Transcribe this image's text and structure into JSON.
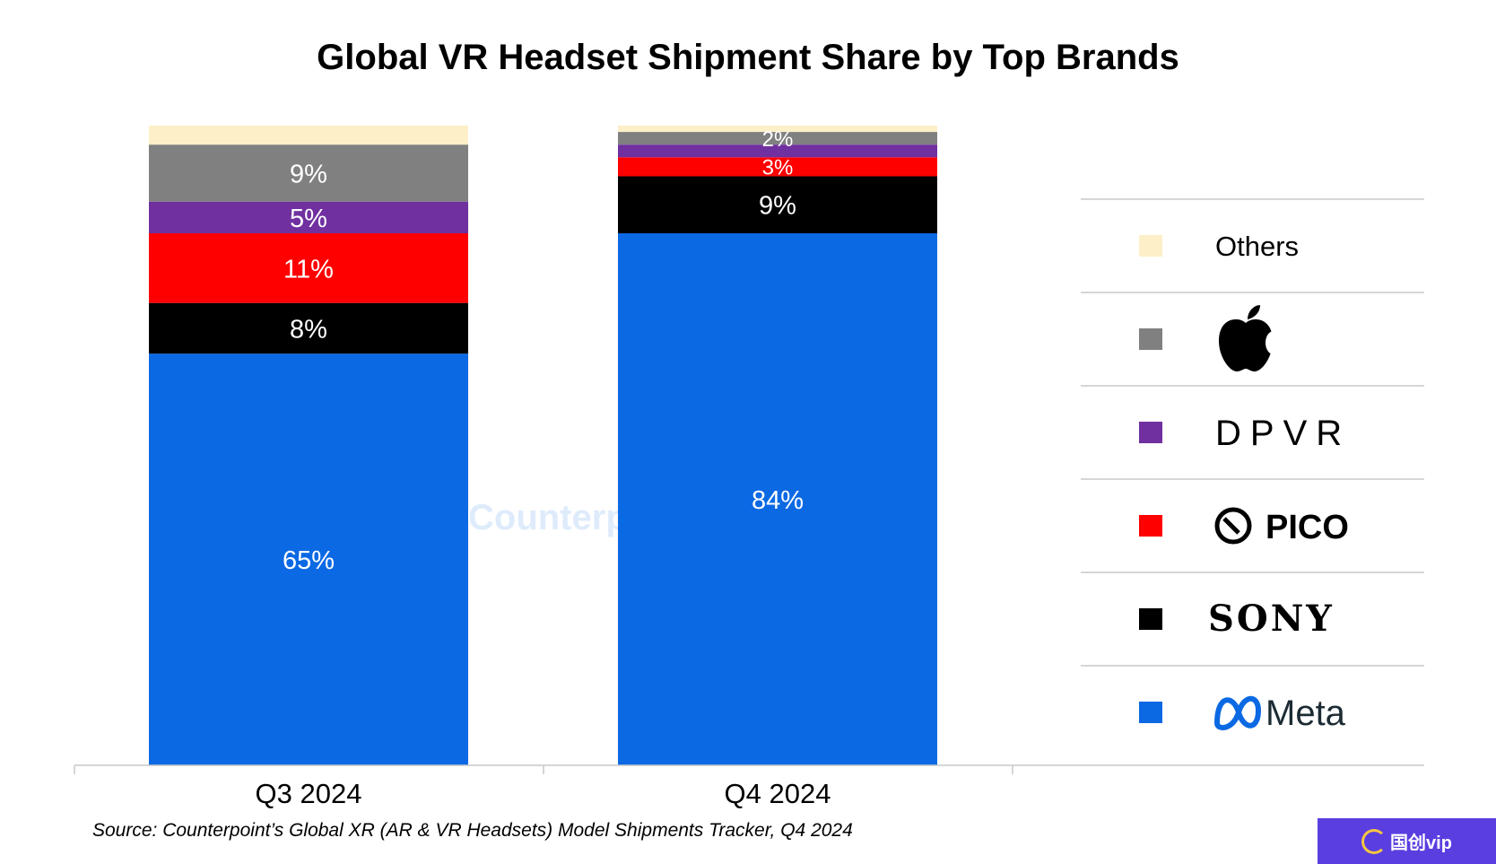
{
  "chart_data": {
    "type": "bar",
    "stacked": true,
    "title": "Global VR Headset Shipment Share by Top Brands",
    "xlabel": "",
    "ylabel": "",
    "ylim": [
      0,
      100
    ],
    "categories": [
      "Q3 2024",
      "Q4 2024"
    ],
    "series": [
      {
        "name": "Meta",
        "color": "#0b69e3",
        "values": [
          65,
          84
        ],
        "labels": [
          "65%",
          "84%"
        ],
        "label_color": "#ffffff"
      },
      {
        "name": "SONY",
        "color": "#000000",
        "values": [
          8,
          9
        ],
        "labels": [
          "8%",
          "9%"
        ],
        "label_color": "#ffffff"
      },
      {
        "name": "PICO",
        "color": "#ff0000",
        "values": [
          11,
          3
        ],
        "labels": [
          "11%",
          "3%"
        ],
        "label_color": "#ffffff"
      },
      {
        "name": "DPVR",
        "color": "#7030a0",
        "values": [
          5,
          2
        ],
        "labels": [
          "5%",
          ""
        ],
        "label_color": "#ffffff"
      },
      {
        "name": "Apple",
        "color": "#808080",
        "values": [
          9,
          2
        ],
        "labels": [
          "9%",
          "2%"
        ],
        "label_color": "#ffffff"
      },
      {
        "name": "Others",
        "color": "#fdefc8",
        "values": [
          3,
          1
        ],
        "labels": [
          "",
          ""
        ],
        "label_color": "#ffffff"
      }
    ],
    "legend": {
      "placement": "right",
      "items": [
        {
          "series": "Others",
          "text": "Others",
          "icon": "text"
        },
        {
          "series": "Apple",
          "text": "",
          "icon": "apple-logo-icon"
        },
        {
          "series": "DPVR",
          "text": "DPVR",
          "icon": "dpvr-wordmark"
        },
        {
          "series": "PICO",
          "text": "PICO",
          "icon": "pico-logo-icon"
        },
        {
          "series": "SONY",
          "text": "SONY",
          "icon": "sony-wordmark"
        },
        {
          "series": "Meta",
          "text": "Meta",
          "icon": "meta-logo-icon"
        }
      ]
    },
    "grid": false
  },
  "watermark": "Counterpoint",
  "source": "Source: Counterpoint’s Global XR (AR & VR Headsets) Model Shipments Tracker, Q4 2024",
  "badge": "国创vip"
}
